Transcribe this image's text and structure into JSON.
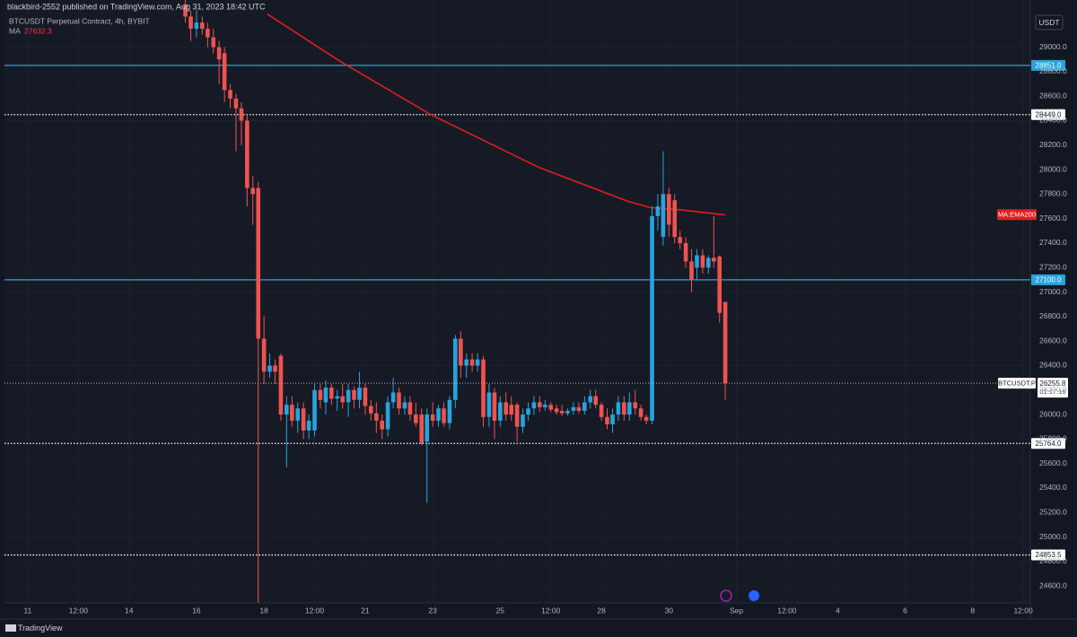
{
  "chart_data": {
    "type": "candlestick",
    "publish_note": "blackbird-2552 published on TradingView.com, Aug 31, 2023 18:42 UTC",
    "title": "BTCUSDT Perpetual Contract, 4h, BYBIT",
    "currency": "USDT",
    "footer_brand": "TradingView",
    "up_color": "#29a3dd",
    "down_color": "#ef5350",
    "xlim": [
      10.31,
      40.71
    ],
    "ylim": [
      24462,
      29385
    ],
    "xticks": [
      11,
      {
        "value": 12.5,
        "label": "12:00"
      },
      14,
      16,
      18,
      {
        "value": 19.5,
        "label": "12:00"
      },
      21,
      23,
      25,
      {
        "value": 26.5,
        "label": "12:00"
      },
      28,
      30,
      {
        "value": 32,
        "label": "Sep"
      },
      {
        "value": 33.5,
        "label": "12:00"
      },
      {
        "value": 35,
        "label": "4"
      },
      {
        "value": 37,
        "label": "6"
      },
      {
        "value": 39,
        "label": "8"
      },
      {
        "value": 40.5,
        "label": "12:00"
      }
    ],
    "yticks": [
      {
        "value": 24600,
        "label": "24600.0"
      },
      {
        "value": 24800,
        "label": "24800.0"
      },
      {
        "value": 25000,
        "label": "25000.0"
      },
      {
        "value": 25200,
        "label": "25200.0"
      },
      {
        "value": 25400,
        "label": "25400.0"
      },
      {
        "value": 25600,
        "label": "25600.0"
      },
      {
        "value": 25800,
        "label": "25800.0"
      },
      {
        "value": 26000,
        "label": "26000.0"
      },
      {
        "value": 26200,
        "label": "26200.0"
      },
      {
        "value": 26400,
        "label": "26400.0"
      },
      {
        "value": 26600,
        "label": "26600.0"
      },
      {
        "value": 26800,
        "label": "26800.0"
      },
      {
        "value": 27000,
        "label": "27000.0"
      },
      {
        "value": 27200,
        "label": "27200.0"
      },
      {
        "value": 27400,
        "label": "27400.0"
      },
      {
        "value": 27600,
        "label": "27600.0"
      },
      {
        "value": 27800,
        "label": "27800.0"
      },
      {
        "value": 28000,
        "label": "28000.0"
      },
      {
        "value": 28200,
        "label": "28200.0"
      },
      {
        "value": 28400,
        "label": "28400.0"
      },
      {
        "value": 28600,
        "label": "28600.0"
      },
      {
        "value": 28800,
        "label": "28800.0"
      },
      {
        "value": 29000,
        "label": "29000.0"
      }
    ],
    "x": [
      15.67,
      15.83,
      16,
      16.17,
      16.33,
      16.5,
      16.67,
      16.83,
      17,
      17.17,
      17.33,
      17.5,
      17.67,
      17.83,
      18,
      18.17,
      18.33,
      18.5,
      18.67,
      18.83,
      19,
      19.17,
      19.33,
      19.5,
      19.67,
      19.83,
      20,
      20.17,
      20.33,
      20.5,
      20.67,
      20.83,
      21,
      21.17,
      21.33,
      21.5,
      21.67,
      21.83,
      22,
      22.17,
      22.33,
      22.5,
      22.67,
      22.83,
      23,
      23.17,
      23.33,
      23.5,
      23.67,
      23.83,
      24,
      24.17,
      24.33,
      24.5,
      24.67,
      24.83,
      25,
      25.17,
      25.33,
      25.5,
      25.67,
      25.83,
      26,
      26.17,
      26.33,
      26.5,
      26.67,
      26.83,
      27,
      27.17,
      27.33,
      27.5,
      27.67,
      27.83,
      28,
      28.17,
      28.33,
      28.5,
      28.67,
      28.83,
      29,
      29.17,
      29.33,
      29.5,
      29.67,
      29.83,
      30,
      30.17,
      30.33,
      30.5,
      30.67,
      30.83,
      31,
      31.17,
      31.33,
      31.5,
      31.67
    ],
    "open": [
      29350,
      29250,
      29150,
      29200,
      29150,
      29080,
      29000,
      28950,
      28650,
      28580,
      28500,
      28400,
      27850,
      27850,
      26620,
      26350,
      26400,
      26480,
      26000,
      26080,
      25950,
      26050,
      25870,
      25870,
      26200,
      26100,
      26220,
      26130,
      26150,
      26100,
      26200,
      26120,
      26220,
      26070,
      26010,
      25950,
      25880,
      26100,
      26180,
      26050,
      26100,
      26000,
      26000,
      25780,
      26000,
      25950,
      26050,
      25930,
      26120,
      26620,
      26400,
      26450,
      26400,
      26450,
      25980,
      26180,
      25950,
      26100,
      26080,
      26080,
      25900,
      26000,
      26050,
      26100,
      26060,
      26080,
      26050,
      26030,
      26010,
      26030,
      26060,
      26030,
      26100,
      26150,
      26080,
      25980,
      25920,
      26000,
      26100,
      26000,
      26100,
      26050,
      25980,
      25950,
      27620,
      27450,
      27800,
      27750,
      27450,
      27400,
      27250,
      27200,
      27300,
      27200,
      27280,
      27290,
      26920
    ],
    "high": [
      29400,
      29300,
      29300,
      29250,
      29200,
      29150,
      29050,
      29000,
      28700,
      28620,
      28550,
      28450,
      27950,
      27900,
      26800,
      26500,
      26450,
      26500,
      26150,
      26150,
      26100,
      26100,
      26000,
      26250,
      26250,
      26280,
      26250,
      26200,
      26250,
      26250,
      26230,
      26350,
      26250,
      26120,
      26100,
      26000,
      26150,
      26300,
      26220,
      26150,
      26150,
      26100,
      26050,
      26050,
      26100,
      26080,
      26100,
      26150,
      26650,
      26680,
      26500,
      26500,
      26500,
      26480,
      26250,
      26220,
      26150,
      26180,
      26150,
      26100,
      26050,
      26100,
      26150,
      26150,
      26120,
      26100,
      26080,
      26080,
      26050,
      26100,
      26100,
      26150,
      26200,
      26200,
      26100,
      26050,
      26050,
      26150,
      26150,
      26180,
      26200,
      26080,
      26000,
      27700,
      27800,
      28150,
      27850,
      27800,
      27500,
      27450,
      27350,
      27350,
      27350,
      27300,
      27620,
      27300,
      26920
    ],
    "low": [
      29200,
      29050,
      29080,
      29100,
      29000,
      28950,
      28700,
      28550,
      28500,
      28150,
      28200,
      27700,
      27550,
      24460,
      26250,
      26300,
      26250,
      25950,
      25570,
      25900,
      25850,
      25800,
      25800,
      25820,
      26050,
      26000,
      26080,
      26030,
      26050,
      25980,
      26050,
      26050,
      26000,
      25950,
      25850,
      25800,
      25820,
      26050,
      26000,
      26000,
      25950,
      25900,
      25750,
      25280,
      25900,
      25900,
      25900,
      25880,
      26050,
      26300,
      26300,
      26350,
      26350,
      25900,
      25900,
      25800,
      25900,
      25950,
      25950,
      25780,
      25850,
      25950,
      26000,
      26020,
      26030,
      26020,
      26000,
      25990,
      25990,
      26000,
      26010,
      26000,
      26050,
      26050,
      25950,
      25880,
      25850,
      25950,
      25950,
      25950,
      26000,
      25950,
      25920,
      25920,
      27500,
      27380,
      27450,
      27400,
      27350,
      27200,
      27000,
      27100,
      27150,
      27150,
      27200,
      26750,
      26120
    ],
    "close": [
      29250,
      29150,
      29200,
      29150,
      29080,
      29000,
      28900,
      28650,
      28580,
      28500,
      28400,
      27850,
      27800,
      26620,
      26350,
      26400,
      26350,
      26000,
      26080,
      25950,
      26050,
      25870,
      25950,
      26200,
      26120,
      26220,
      26130,
      26150,
      26100,
      26200,
      26120,
      26220,
      26070,
      26010,
      25950,
      25880,
      26100,
      26180,
      26050,
      26100,
      26000,
      25930,
      25770,
      26000,
      25950,
      26050,
      25930,
      26120,
      26620,
      26400,
      26450,
      26400,
      26450,
      25980,
      26180,
      25950,
      26100,
      26000,
      26000,
      25900,
      26000,
      26050,
      26100,
      26060,
      26080,
      26040,
      26020,
      26010,
      26030,
      26060,
      26030,
      26100,
      26150,
      26080,
      25980,
      25920,
      26000,
      26100,
      26000,
      26100,
      26050,
      25980,
      25950,
      27620,
      27700,
      27800,
      27550,
      27450,
      27400,
      27250,
      27100,
      27300,
      27200,
      27280,
      27250,
      26830,
      26255.8
    ],
    "ema": {
      "name": "MA:EMA200",
      "legend_label": "MA",
      "last": 27632.3,
      "color": "#e01e1e",
      "x": [
        18.1,
        20.28,
        22.94,
        26.13,
        28.79,
        29.46,
        30.39,
        31.67
      ],
      "values": [
        29270,
        28880,
        28450,
        28020,
        27740,
        27690,
        27670,
        27630
      ]
    },
    "levels": [
      {
        "value": 28851,
        "label": "28851.0",
        "color": "#29a3dd",
        "style": "solid"
      },
      {
        "value": 28449,
        "label": "28449.0",
        "color": "#ffffff",
        "style": "dotted"
      },
      {
        "value": 27100,
        "label": "27100.0",
        "color": "#29a3dd",
        "style": "solid"
      },
      {
        "value": 25764,
        "label": "25764.0",
        "color": "#ffffff",
        "style": "dotted"
      },
      {
        "value": 24853.5,
        "label": "24853.5",
        "color": "#ffffff",
        "style": "dotted"
      }
    ],
    "last_price": 26255.8,
    "last_price_symbol": "BTCUSDT.P",
    "countdown": "01:17:16"
  }
}
